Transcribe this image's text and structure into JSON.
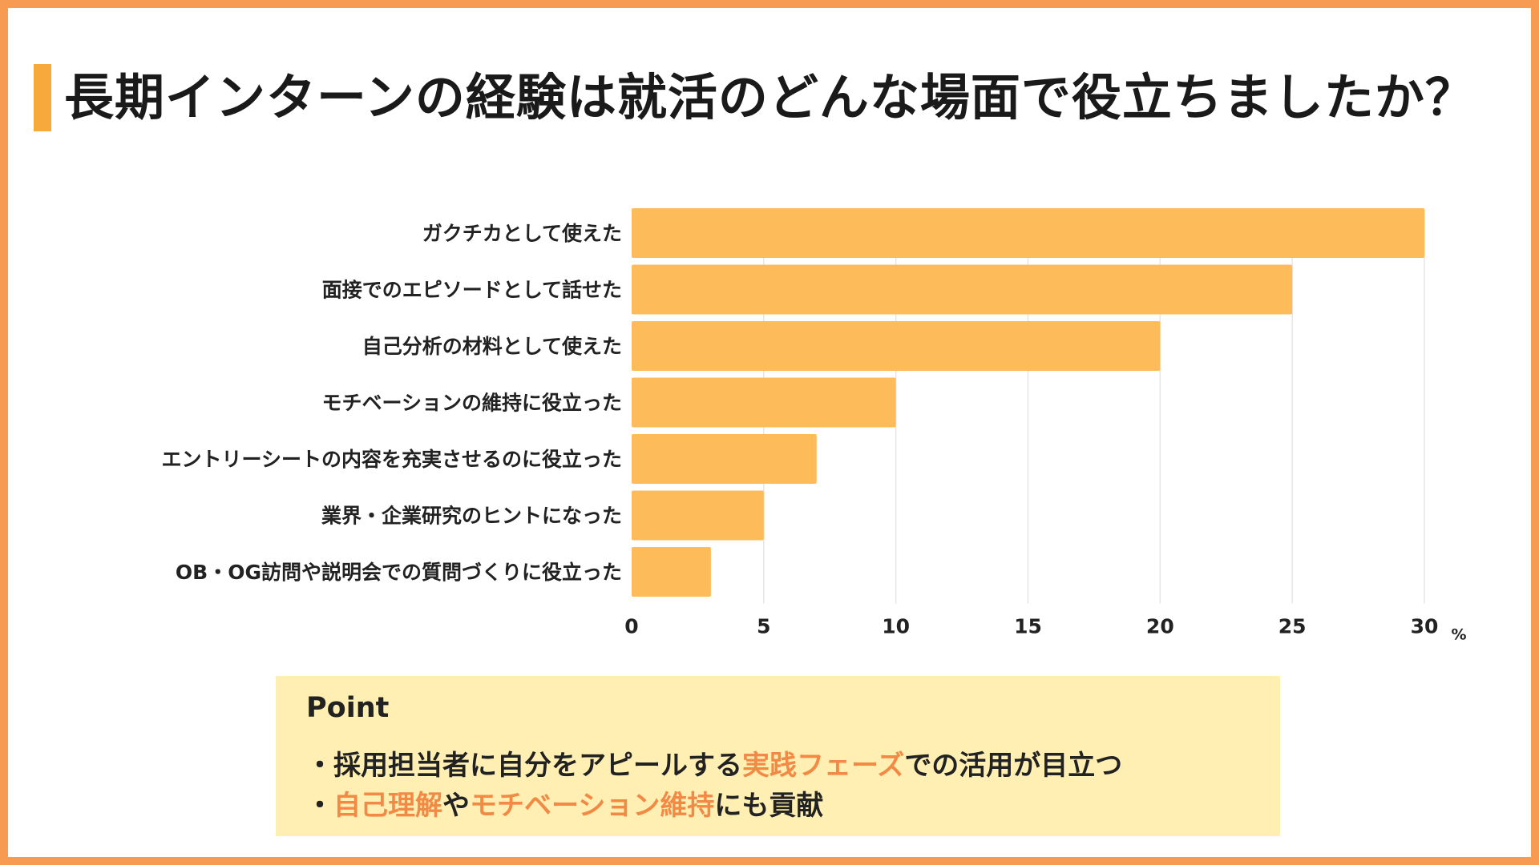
{
  "title": "長期インターンの経験は就活のどんな場面で役立ちましたか？",
  "colors": {
    "border": "#F79B52",
    "accent": "#F7A93B",
    "bar": "#FDBB5A",
    "point_bg": "#FFEFB2",
    "highlight": "#F28A45"
  },
  "chart_data": {
    "type": "bar",
    "orientation": "horizontal",
    "categories": [
      "ガクチカとして使えた",
      "面接でのエピソードとして話せた",
      "自己分析の材料として使えた",
      "モチベーションの維持に役立った",
      "エントリーシートの内容を充実させるのに役立った",
      "業界・企業研究のヒントになった",
      "OB・OG訪問や説明会での質問づくりに役立った"
    ],
    "values": [
      30,
      25,
      20,
      10,
      7,
      5,
      3
    ],
    "xlim": [
      0,
      30
    ],
    "xticks": [
      0,
      5,
      10,
      15,
      20,
      25,
      30
    ],
    "unit": "%",
    "grid": "vertical"
  },
  "point": {
    "title": "Point",
    "line1": {
      "bullet": "・",
      "a": "採用担当者に自分をアピールする",
      "b": "実践フェーズ",
      "c": "での活用が目立つ"
    },
    "line2": {
      "bullet": "・",
      "a": "自己理解",
      "b": "や",
      "c": "モチベーション維持",
      "d": "にも貢献"
    }
  }
}
